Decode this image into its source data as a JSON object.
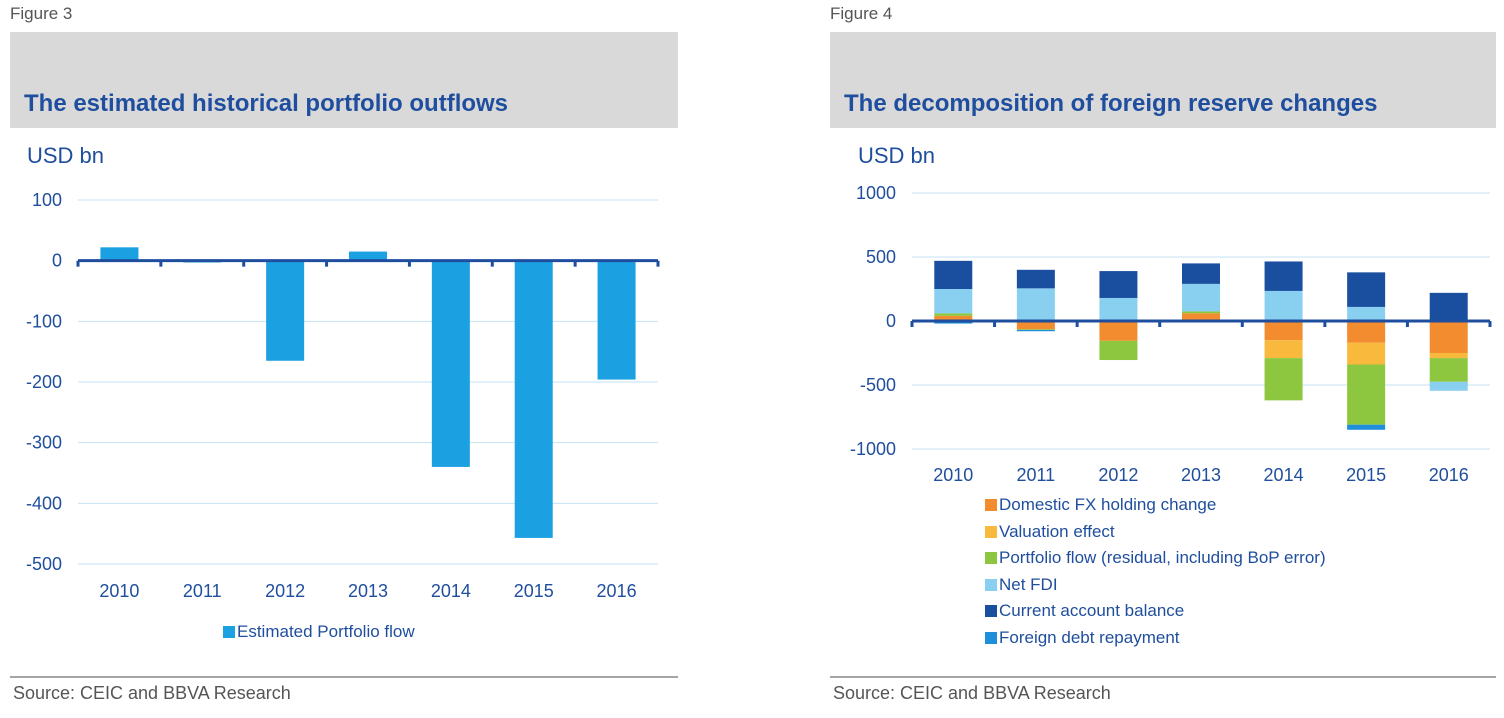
{
  "figures": [
    {
      "label": "Figure 3",
      "title": "The estimated historical portfolio outflows",
      "unit": "USD bn",
      "source": "Source: CEIC and BBVA Research"
    },
    {
      "label": "Figure 4",
      "title": "The decomposition of foreign reserve changes",
      "unit": "USD bn",
      "source": "Source: CEIC and BBVA Research"
    }
  ],
  "colors": {
    "title": "#1f4e9e",
    "axis": "#1f4e9e",
    "grid": "#c5e3f3",
    "portfolio_bar": "#1ba1e2"
  },
  "chart_data": [
    {
      "type": "bar",
      "title": "The estimated historical portfolio outflows",
      "ylabel": "USD bn",
      "categories": [
        "2010",
        "2011",
        "2012",
        "2013",
        "2014",
        "2015",
        "2016"
      ],
      "series": [
        {
          "name": "Estimated Portfolio flow",
          "color": "#1ba1e2",
          "values": [
            22,
            -3,
            -165,
            15,
            -340,
            -457,
            -196
          ]
        }
      ],
      "ylim": [
        -500,
        100
      ],
      "yticks": [
        100,
        0,
        -100,
        -200,
        -300,
        -400,
        -500
      ],
      "grid": true,
      "legend": "bottom"
    },
    {
      "type": "bar",
      "stacked": true,
      "title": "The decomposition of foreign reserve changes",
      "ylabel": "USD bn",
      "categories": [
        "2010",
        "2011",
        "2012",
        "2013",
        "2014",
        "2015",
        "2016"
      ],
      "series": [
        {
          "name": "Domestic FX holding change",
          "color": "#f28c2e",
          "values": [
            40,
            -65,
            -155,
            60,
            -150,
            -170,
            -250
          ]
        },
        {
          "name": "Valuation effect",
          "color": "#f9b93c",
          "values": [
            0,
            0,
            0,
            0,
            -140,
            -170,
            -40
          ]
        },
        {
          "name": "Portfolio flow (residual, including BoP error)",
          "color": "#8dc63f",
          "values": [
            20,
            -5,
            -150,
            15,
            -330,
            -470,
            -185
          ]
        },
        {
          "name": "Net FDI",
          "color": "#89cff0",
          "values": [
            190,
            255,
            180,
            215,
            235,
            110,
            -70
          ]
        },
        {
          "name": "Current account balance",
          "color": "#1a4e9e",
          "values": [
            220,
            145,
            210,
            160,
            230,
            270,
            220
          ]
        },
        {
          "name": "Foreign debt repayment",
          "color": "#1f8fdb",
          "values": [
            -20,
            -10,
            0,
            -10,
            0,
            -40,
            0
          ]
        }
      ],
      "ylim": [
        -1000,
        1000
      ],
      "yticks": [
        1000,
        500,
        0,
        -500,
        -1000
      ],
      "grid": true,
      "legend": "bottom"
    }
  ]
}
